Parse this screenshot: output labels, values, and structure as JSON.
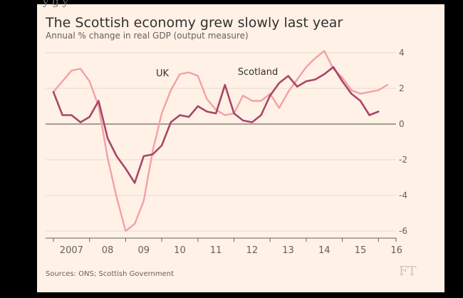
{
  "header": {
    "top_cropped_text": "y                    g      y",
    "title": "The Scottish economy grew slowly last year",
    "subtitle": "Annual % change in real GDP (output measure)"
  },
  "source": "Sources: ONS; Scottish Government",
  "logo_text": "FT",
  "chart_data": {
    "type": "line",
    "title": "The Scottish economy grew slowly last year",
    "subtitle": "Annual % change in real GDP (output measure)",
    "xlabel": "",
    "ylabel": "",
    "x_tick_labels": [
      "2007",
      "08",
      "09",
      "10",
      "11",
      "12",
      "13",
      "14",
      "15",
      "16"
    ],
    "y_ticks": [
      4,
      2,
      0,
      -2,
      -4,
      -6
    ],
    "y_tick_labels": [
      "4",
      "2",
      "0",
      "-2",
      "-4",
      "-6"
    ],
    "ylim": [
      -6.2,
      4.4
    ],
    "y_axis_side": "right",
    "grid": "horizontal",
    "series": [
      {
        "name": "UK",
        "color": "#f3a0a8",
        "x": [
          2007.0,
          2007.25,
          2007.5,
          2007.75,
          2008.0,
          2008.25,
          2008.5,
          2008.75,
          2009.0,
          2009.25,
          2009.5,
          2009.75,
          2010.0,
          2010.25,
          2010.5,
          2010.75,
          2011.0,
          2011.25,
          2011.5,
          2011.75,
          2012.0,
          2012.25,
          2012.5,
          2012.75,
          2013.0,
          2013.25,
          2013.5,
          2013.75,
          2014.0,
          2014.25,
          2014.5,
          2014.75,
          2015.0,
          2015.25,
          2015.5,
          2015.75,
          2016.0,
          2016.25
        ],
        "values": [
          1.8,
          2.4,
          3.0,
          3.1,
          2.4,
          1.0,
          -1.9,
          -4.1,
          -6.0,
          -5.6,
          -4.3,
          -1.5,
          0.6,
          1.9,
          2.8,
          2.9,
          2.7,
          1.4,
          0.8,
          0.5,
          0.6,
          1.6,
          1.3,
          1.3,
          1.7,
          0.9,
          1.8,
          2.5,
          3.2,
          3.7,
          4.1,
          3.1,
          2.6,
          1.9,
          1.7,
          1.8,
          1.9,
          2.2
        ]
      },
      {
        "name": "Scotland",
        "color": "#a8466b",
        "x": [
          2007.0,
          2007.25,
          2007.5,
          2007.75,
          2008.0,
          2008.25,
          2008.5,
          2008.75,
          2009.0,
          2009.25,
          2009.5,
          2009.75,
          2010.0,
          2010.25,
          2010.5,
          2010.75,
          2011.0,
          2011.25,
          2011.5,
          2011.75,
          2012.0,
          2012.25,
          2012.5,
          2012.75,
          2013.0,
          2013.25,
          2013.5,
          2013.75,
          2014.0,
          2014.25,
          2014.5,
          2014.75,
          2015.0,
          2015.25,
          2015.5,
          2015.75,
          2016.0
        ],
        "values": [
          1.8,
          0.5,
          0.5,
          0.1,
          0.4,
          1.3,
          -0.8,
          -1.8,
          -2.5,
          -3.3,
          -1.8,
          -1.7,
          -1.2,
          0.1,
          0.5,
          0.4,
          1.0,
          0.7,
          0.6,
          2.2,
          0.6,
          0.2,
          0.1,
          0.5,
          1.6,
          2.3,
          2.7,
          2.1,
          2.4,
          2.5,
          2.8,
          3.2,
          2.4,
          1.7,
          1.3,
          0.5,
          0.7
        ]
      }
    ],
    "annotations": [
      {
        "text": "UK",
        "series": "UK"
      },
      {
        "text": "Scotland",
        "series": "Scotland"
      }
    ]
  }
}
